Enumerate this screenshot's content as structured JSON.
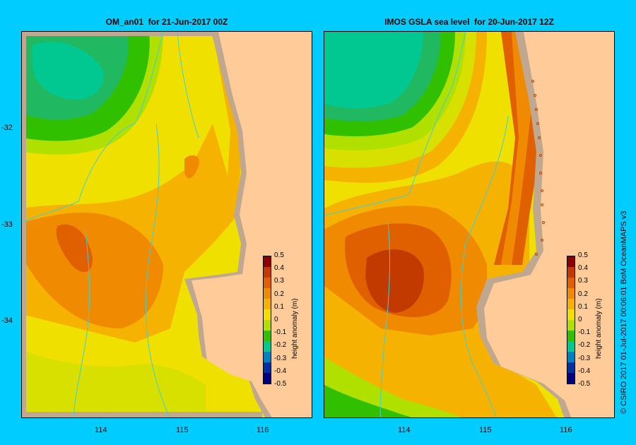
{
  "panels": [
    {
      "title": "OM_an01  for 21-Jun-2017 00Z"
    },
    {
      "title": "IMOS GSLA sea level  for 20-Jun-2017 12Z"
    }
  ],
  "axes": {
    "y_ticks": [
      "-32",
      "-33",
      "-34"
    ],
    "x_ticks": [
      "114",
      "115",
      "116"
    ]
  },
  "colorbar": {
    "title": "height anomaly (m)",
    "labels": [
      "0.5",
      "0.4",
      "0.3",
      "0.2",
      "0.1",
      "0",
      "-0.1",
      "-0.2",
      "-0.3",
      "-0.4",
      "-0.5"
    ],
    "colors": [
      "#8b0000",
      "#c23a00",
      "#e06000",
      "#f08a00",
      "#f5b200",
      "#f0e000",
      "#b0e000",
      "#30c000",
      "#00c890",
      "#0080c0",
      "#0030a0",
      "#000080"
    ]
  },
  "credit": "© CSIRO 2017   01-Jul-2017 00:06:01 BoM OceanMAPS v3"
}
